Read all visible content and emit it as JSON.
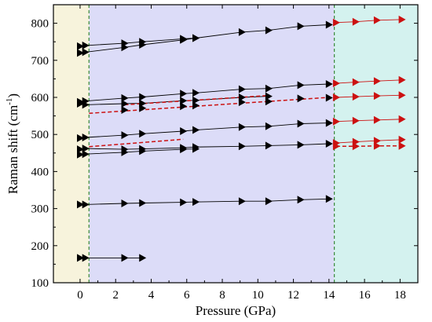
{
  "chart_data": {
    "type": "scatter",
    "title": "",
    "xlabel": "Pressure (GPa)",
    "ylabel_main": "Raman shift (cm",
    "ylabel_sup": "-1",
    "ylabel_close": ")",
    "xlim": [
      -1.5,
      19.0
    ],
    "ylim": [
      100,
      850
    ],
    "xticks": [
      0,
      2,
      4,
      6,
      8,
      10,
      12,
      14,
      16,
      18
    ],
    "xtick_labels": [
      "0",
      "2",
      "4",
      "6",
      "8",
      "10",
      "12",
      "14",
      "16",
      "18"
    ],
    "yticks": [
      100,
      200,
      300,
      400,
      500,
      600,
      700,
      800
    ],
    "ytick_labels": [
      "100",
      "200",
      "300",
      "400",
      "500",
      "600",
      "700",
      "800"
    ],
    "grid": false,
    "phase_regions": [
      {
        "x0": -1.5,
        "x1": 0.5,
        "color": "#f7f3dc"
      },
      {
        "x0": 0.5,
        "x1": 14.3,
        "color": "#dcdcf8"
      },
      {
        "x0": 14.3,
        "x1": 19.0,
        "color": "#d4f2ef"
      }
    ],
    "phase_boundaries": [
      0.5,
      14.3
    ],
    "boundary_color": "#3a8a3a",
    "black_marker_color": "#000000",
    "red_marker_color": "#cc1111",
    "series": [
      {
        "color": "black",
        "line": "solid",
        "points": [
          [
            0.0,
            738
          ],
          [
            0.3,
            740
          ],
          [
            2.5,
            746
          ],
          [
            3.5,
            750
          ],
          [
            5.8,
            758
          ],
          [
            6.5,
            760
          ]
        ]
      },
      {
        "color": "black",
        "line": "solid",
        "points": [
          [
            0.0,
            720
          ],
          [
            0.3,
            722
          ],
          [
            2.5,
            735
          ],
          [
            3.5,
            742
          ],
          [
            5.8,
            755
          ],
          [
            6.5,
            760
          ],
          [
            9.1,
            776
          ],
          [
            10.6,
            781
          ],
          [
            12.4,
            792
          ],
          [
            14.0,
            796
          ]
        ]
      },
      {
        "color": "black",
        "line": "solid",
        "points": [
          [
            0.0,
            588
          ],
          [
            0.3,
            590
          ],
          [
            2.5,
            598
          ],
          [
            3.5,
            601
          ],
          [
            5.8,
            610
          ],
          [
            6.5,
            612
          ],
          [
            9.1,
            622
          ],
          [
            10.6,
            624
          ],
          [
            12.4,
            633
          ],
          [
            14.0,
            636
          ]
        ]
      },
      {
        "color": "black",
        "line": "solid",
        "points": [
          [
            0.0,
            583
          ],
          [
            0.3,
            580
          ],
          [
            2.5,
            583
          ],
          [
            3.5,
            584
          ],
          [
            5.8,
            591
          ],
          [
            6.5,
            592
          ],
          [
            9.1,
            600
          ],
          [
            10.6,
            603
          ]
        ]
      },
      {
        "color": "black",
        "line": "none",
        "points": [
          [
            2.5,
            566
          ],
          [
            3.5,
            571
          ],
          [
            5.8,
            576
          ],
          [
            6.5,
            578
          ],
          [
            9.1,
            587
          ],
          [
            10.6,
            589
          ],
          [
            12.4,
            597
          ],
          [
            14.0,
            599
          ]
        ]
      },
      {
        "color": "black",
        "line": "solid",
        "points": [
          [
            0.0,
            490
          ],
          [
            0.3,
            492
          ],
          [
            2.5,
            498
          ],
          [
            3.5,
            502
          ],
          [
            5.8,
            509
          ],
          [
            6.5,
            512
          ],
          [
            9.1,
            520
          ],
          [
            10.6,
            522
          ],
          [
            12.4,
            529
          ],
          [
            14.0,
            531
          ]
        ]
      },
      {
        "color": "black",
        "line": "solid",
        "points": [
          [
            0.0,
            460
          ],
          [
            0.3,
            462
          ],
          [
            2.5,
            460
          ],
          [
            3.5,
            461
          ],
          [
            5.8,
            464
          ],
          [
            6.5,
            466
          ],
          [
            9.1,
            468
          ],
          [
            10.6,
            470
          ],
          [
            12.4,
            472
          ],
          [
            14.0,
            475
          ]
        ]
      },
      {
        "color": "black",
        "line": "solid",
        "points": [
          [
            0.0,
            446
          ],
          [
            0.3,
            447
          ],
          [
            2.5,
            452
          ],
          [
            3.5,
            455
          ],
          [
            5.8,
            460
          ],
          [
            6.5,
            461
          ]
        ]
      },
      {
        "color": "black",
        "line": "solid",
        "points": [
          [
            0.0,
            311
          ],
          [
            0.3,
            311
          ],
          [
            2.5,
            314
          ],
          [
            3.5,
            315
          ],
          [
            5.8,
            317
          ],
          [
            6.5,
            318
          ],
          [
            9.1,
            320
          ],
          [
            10.6,
            320
          ],
          [
            12.4,
            324
          ],
          [
            14.0,
            326
          ]
        ]
      },
      {
        "color": "black",
        "line": "solid",
        "points": [
          [
            0.0,
            167
          ],
          [
            0.3,
            167
          ],
          [
            2.5,
            167
          ],
          [
            3.5,
            167
          ]
        ]
      },
      {
        "color": "red",
        "line": "dashed",
        "points": [
          [
            0.5,
            557
          ],
          [
            14.0,
            600
          ]
        ]
      },
      {
        "color": "red",
        "line": "dashed",
        "points": [
          [
            2.5,
            580
          ],
          [
            10.6,
            605
          ]
        ]
      },
      {
        "color": "red",
        "line": "dashed",
        "points": [
          [
            0.5,
            467
          ],
          [
            5.8,
            487
          ]
        ]
      },
      {
        "color": "red",
        "line": "solid",
        "points": [
          [
            14.4,
            802
          ],
          [
            15.5,
            804
          ],
          [
            16.7,
            808
          ],
          [
            18.1,
            810
          ]
        ]
      },
      {
        "color": "red",
        "line": "solid",
        "points": [
          [
            14.4,
            638
          ],
          [
            15.5,
            641
          ],
          [
            16.7,
            644
          ],
          [
            18.1,
            647
          ]
        ]
      },
      {
        "color": "red",
        "line": "solid",
        "points": [
          [
            14.4,
            600
          ],
          [
            15.5,
            602
          ],
          [
            16.7,
            604
          ],
          [
            18.1,
            606
          ]
        ]
      },
      {
        "color": "red",
        "line": "solid",
        "points": [
          [
            14.4,
            535
          ],
          [
            15.5,
            537
          ],
          [
            16.7,
            539
          ],
          [
            18.1,
            541
          ]
        ]
      },
      {
        "color": "red",
        "line": "solid",
        "points": [
          [
            14.4,
            477
          ],
          [
            15.5,
            480
          ],
          [
            16.7,
            483
          ],
          [
            18.1,
            486
          ]
        ]
      },
      {
        "color": "red",
        "line": "dashed",
        "points": [
          [
            14.4,
            468
          ],
          [
            15.5,
            468
          ],
          [
            16.7,
            469
          ],
          [
            18.1,
            469
          ]
        ]
      }
    ]
  }
}
